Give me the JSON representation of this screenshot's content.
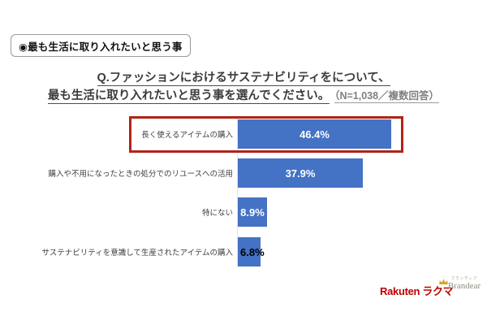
{
  "badge": {
    "label": "◉最も生活に取り入れたいと思う事"
  },
  "title": {
    "line1": "Q.ファッションにおけるサステナビリティをについて、",
    "line2": "最も生活に取り入れたいと思う事を選んでください。",
    "note": "（N=1,038／複数回答）"
  },
  "chart_data": {
    "type": "bar",
    "orientation": "horizontal",
    "title": "Q.ファッションにおけるサステナビリティをについて、最も生活に取り入れたいと思う事を選んでください。（N=1,038／複数回答）",
    "categories": [
      "長く使えるアイテムの購入",
      "購入や不用になったときの処分でのリユースへの活用",
      "特にない",
      "サステナビリティを意識して生産されたアイテムの購入"
    ],
    "values": [
      46.4,
      37.9,
      8.9,
      6.8
    ],
    "value_labels": [
      "46.4%",
      "37.9%",
      "8.9%",
      "6.8%"
    ],
    "xlim": [
      0,
      50
    ],
    "grid": false,
    "legend": "none",
    "bar_color": "#4472c4",
    "value_label_colors": [
      "#ffffff",
      "#ffffff",
      "#ffffff",
      "#000000"
    ],
    "highlight": {
      "row_index": 0,
      "box_color": "#b02418"
    }
  },
  "footer": {
    "rakuten_text": "Rakuten",
    "rakuma_text": "ラクマ",
    "rakuten_color": "#bf0000",
    "brandear_sub_text": "ブランディア",
    "brandear_text": "Brandear",
    "crown_color": "#d9a520"
  }
}
